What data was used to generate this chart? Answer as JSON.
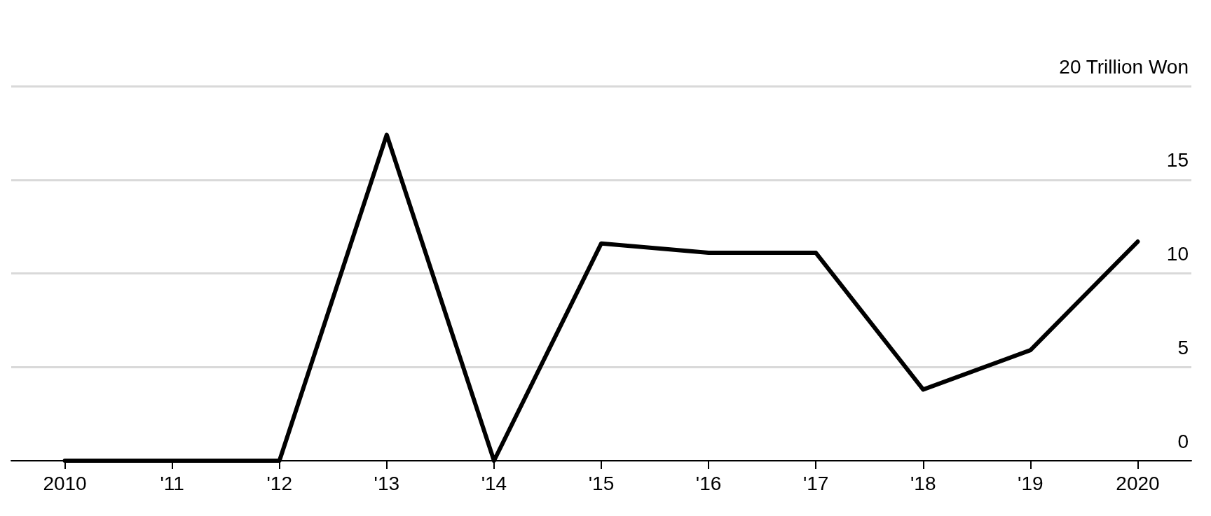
{
  "chart_data": {
    "type": "line",
    "categories": [
      "2010",
      "'11",
      "'12",
      "'13",
      "'14",
      "'15",
      "'16",
      "'17",
      "'18",
      "'19",
      "2020"
    ],
    "series": [
      {
        "color": "#000000",
        "values": [
          0,
          0,
          0,
          17.4,
          0,
          11.6,
          11.1,
          11.1,
          3.8,
          5.9,
          11.7
        ]
      }
    ],
    "ylim": [
      0,
      20
    ],
    "yticks": [
      0,
      5,
      10,
      15,
      {
        "value": 20,
        "label": "20 Trillion Won"
      }
    ],
    "grid": "y",
    "marker": "none",
    "line_style": "solid"
  }
}
